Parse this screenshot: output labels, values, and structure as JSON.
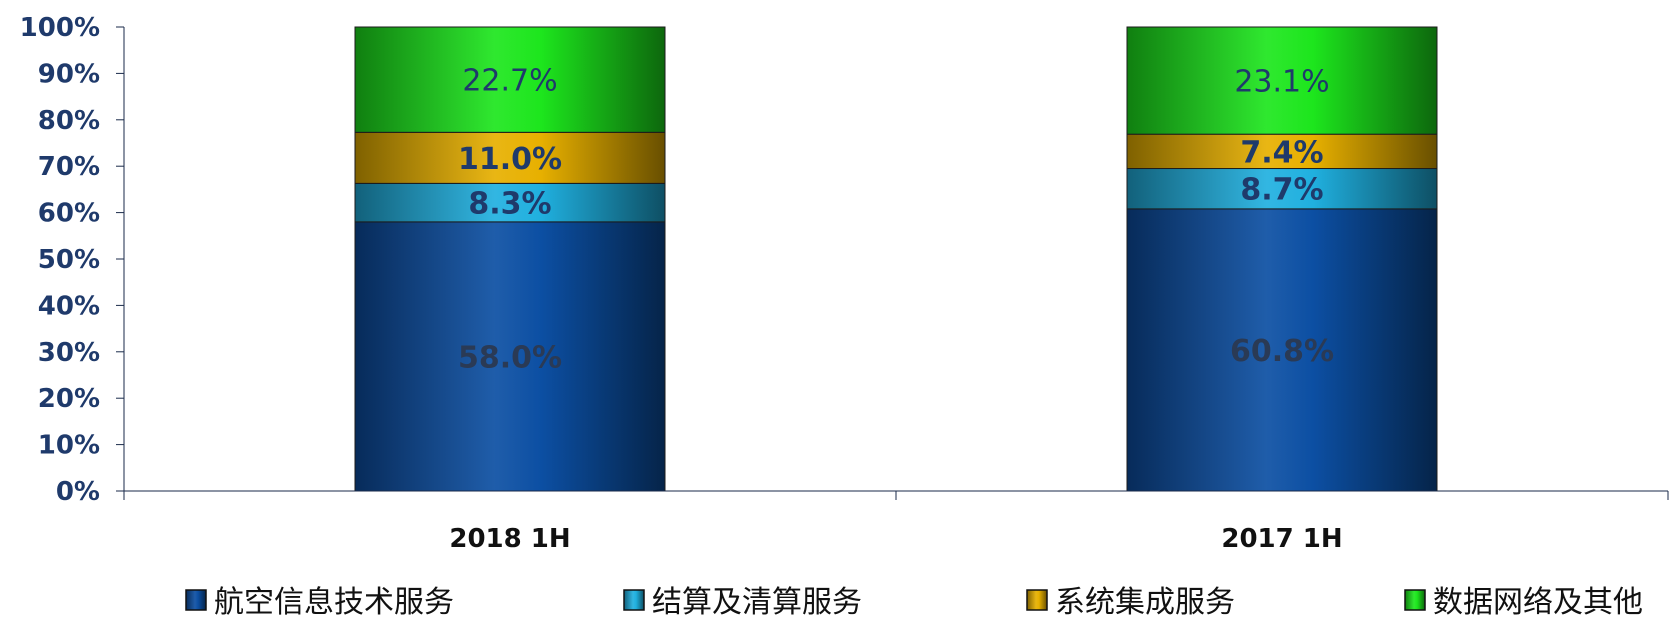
{
  "chart_data": {
    "type": "bar",
    "stacked": true,
    "percent_stacked": true,
    "categories": [
      "2018 1H",
      "2017 1H"
    ],
    "series": [
      {
        "name": "航空信息技术服务",
        "values": [
          58.0,
          60.8
        ],
        "labels": [
          "58.0%",
          "60.8%"
        ],
        "color": "#0c4fa3",
        "label_color": "#2a3a55"
      },
      {
        "name": "结算及清算服务",
        "values": [
          8.3,
          8.7
        ],
        "labels": [
          "8.3%",
          "8.7%"
        ],
        "color": "#20b0df",
        "label_color": "#1f3a6b"
      },
      {
        "name": "系统集成服务",
        "values": [
          11.0,
          7.4
        ],
        "labels": [
          "11.0%",
          "7.4%"
        ],
        "color": "#e7b000",
        "label_color": "#1f3a6b"
      },
      {
        "name": "数据网络及其他",
        "values": [
          22.7,
          23.1
        ],
        "labels": [
          "22.7%",
          "23.1%"
        ],
        "color": "#1de61d",
        "label_color": "#1f3a6b"
      }
    ],
    "ylim": [
      0,
      100
    ],
    "yticks": [
      "0%",
      "10%",
      "20%",
      "30%",
      "40%",
      "50%",
      "60%",
      "70%",
      "80%",
      "90%",
      "100%"
    ],
    "xlabel": "",
    "ylabel": "",
    "legend_position": "bottom",
    "grid": false
  }
}
